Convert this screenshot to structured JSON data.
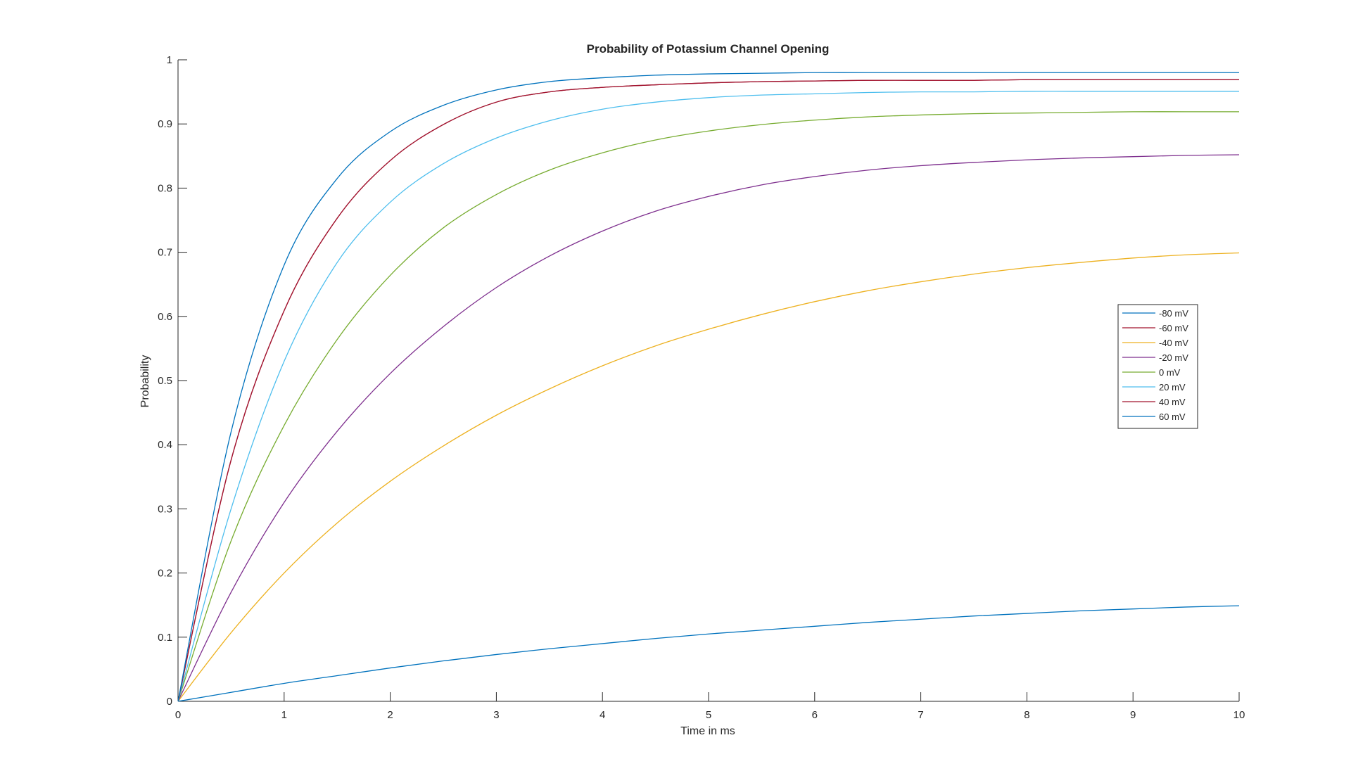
{
  "chart_data": {
    "type": "line",
    "title": "Probability of Potassium Channel Opening",
    "xlabel": "Time in ms",
    "ylabel": "Probability",
    "xlim": [
      0,
      10
    ],
    "ylim": [
      0,
      1
    ],
    "x_ticks": [
      0,
      1,
      2,
      3,
      4,
      5,
      6,
      7,
      8,
      9,
      10
    ],
    "y_ticks": [
      0,
      0.1,
      0.2,
      0.3,
      0.4,
      0.5,
      0.6,
      0.7,
      0.8,
      0.9,
      1
    ],
    "grid": false,
    "legend_position": "right",
    "x": [
      0,
      0.5,
      1,
      1.5,
      2,
      2.5,
      3,
      3.5,
      4,
      4.5,
      5,
      5.5,
      6,
      6.5,
      7,
      7.5,
      8,
      8.5,
      9,
      9.5,
      10
    ],
    "series": [
      {
        "name": "-80 mV",
        "color": "#0072BD",
        "values": [
          0,
          0.014,
          0.028,
          0.04,
          0.052,
          0.063,
          0.073,
          0.082,
          0.09,
          0.098,
          0.105,
          0.111,
          0.117,
          0.123,
          0.128,
          0.133,
          0.137,
          0.141,
          0.144,
          0.147,
          0.149
        ]
      },
      {
        "name": "-60 mV",
        "color": "#A2142F",
        "values": [
          0,
          0.376,
          0.609,
          0.753,
          0.843,
          0.899,
          0.934,
          0.95,
          0.957,
          0.961,
          0.964,
          0.966,
          0.967,
          0.968,
          0.968,
          0.968,
          0.969,
          0.969,
          0.969,
          0.969,
          0.969
        ]
      },
      {
        "name": "-40 mV",
        "color": "#EDB120",
        "values": [
          0,
          0.107,
          0.2,
          0.278,
          0.343,
          0.398,
          0.446,
          0.487,
          0.523,
          0.554,
          0.58,
          0.603,
          0.623,
          0.64,
          0.654,
          0.666,
          0.676,
          0.684,
          0.691,
          0.696,
          0.699
        ]
      },
      {
        "name": "-20 mV",
        "color": "#7E2F8E",
        "values": [
          0,
          0.17,
          0.31,
          0.421,
          0.511,
          0.584,
          0.645,
          0.694,
          0.733,
          0.764,
          0.787,
          0.805,
          0.818,
          0.828,
          0.835,
          0.84,
          0.844,
          0.847,
          0.849,
          0.851,
          0.852
        ]
      },
      {
        "name": "0 mV",
        "color": "#77AC30",
        "values": [
          0,
          0.25,
          0.43,
          0.564,
          0.664,
          0.738,
          0.79,
          0.828,
          0.855,
          0.875,
          0.889,
          0.899,
          0.906,
          0.911,
          0.914,
          0.916,
          0.917,
          0.918,
          0.919,
          0.919,
          0.919
        ]
      },
      {
        "name": "20 mV",
        "color": "#4DBEEE",
        "values": [
          0,
          0.3,
          0.53,
          0.684,
          0.778,
          0.838,
          0.878,
          0.905,
          0.923,
          0.934,
          0.941,
          0.945,
          0.947,
          0.949,
          0.95,
          0.95,
          0.951,
          0.951,
          0.951,
          0.951,
          0.951
        ]
      },
      {
        "name": "40 mV",
        "color": "#A2142F",
        "values": [
          0,
          0.376,
          0.609,
          0.753,
          0.843,
          0.899,
          0.934,
          0.95,
          0.957,
          0.961,
          0.964,
          0.966,
          0.967,
          0.968,
          0.968,
          0.968,
          0.969,
          0.969,
          0.969,
          0.969,
          0.969
        ]
      },
      {
        "name": "60 mV",
        "color": "#0072BD",
        "values": [
          0,
          0.42,
          0.68,
          0.815,
          0.888,
          0.929,
          0.953,
          0.966,
          0.972,
          0.976,
          0.978,
          0.979,
          0.98,
          0.98,
          0.98,
          0.98,
          0.98,
          0.98,
          0.98,
          0.98,
          0.98
        ]
      }
    ]
  }
}
